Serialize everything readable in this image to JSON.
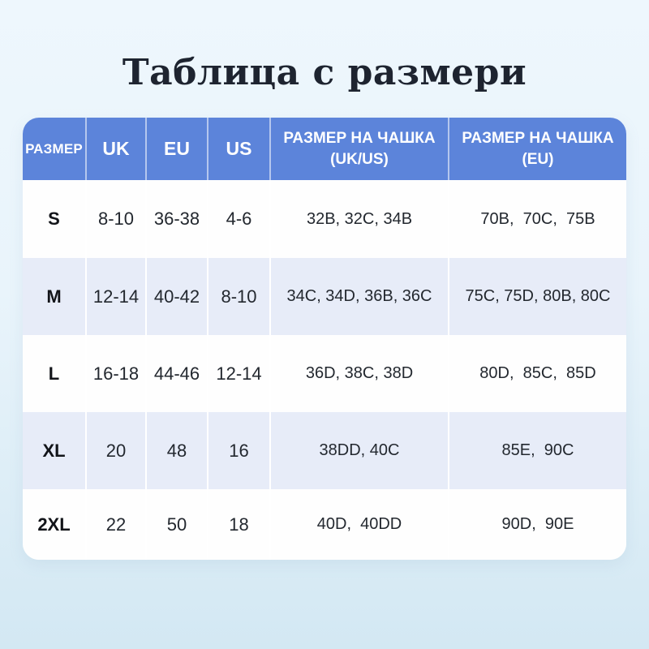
{
  "page": {
    "title": "Таблица с размери"
  },
  "colors": {
    "header_bg": "#5c84da",
    "header_text": "#ffffff",
    "band_row_bg": "#e7ecf8",
    "white_row_bg": "#fefefe",
    "card_bg": "#ffffff",
    "page_bg_top": "#eef7fd",
    "page_bg_bottom": "#d3e8f3",
    "title_text": "#1e2430",
    "body_text": "#23282f"
  },
  "chart_data": {
    "type": "table",
    "title": "Таблица с размери",
    "columns": [
      "РАЗМЕР",
      "UK",
      "EU",
      "US",
      "РАЗМЕР НА ЧАШКА (UK/US)",
      "РАЗМЕР НА ЧАШКА (EU)"
    ],
    "rows": [
      [
        "S",
        "8-10",
        "36-38",
        "4-6",
        "32B, 32C, 34B",
        "70B, 70C, 75B"
      ],
      [
        "M",
        "12-14",
        "40-42",
        "8-10",
        "34C, 34D, 36B, 36C",
        "75C, 75D, 80B, 80C"
      ],
      [
        "L",
        "16-18",
        "44-46",
        "12-14",
        "36D, 38C, 38D",
        "80D, 85C, 85D"
      ],
      [
        "XL",
        "20",
        "48",
        "16",
        "38DD, 40C",
        "85E, 90C"
      ],
      [
        "2XL",
        "22",
        "50",
        "18",
        "40D, 40DD",
        "90D, 90E"
      ]
    ],
    "layout": {
      "header_style": "blue band, white bold text",
      "row_striping": "white / light lavender alternating",
      "grid": "thin white column separators"
    }
  },
  "table": {
    "headers": {
      "size": "РАЗМЕР",
      "uk": "UK",
      "eu": "EU",
      "us": "US",
      "cup_ukus": "РАЗМЕР НА ЧАШКА\n(UK/US)",
      "cup_eu": "РАЗМЕР НА ЧАШКА\n(EU)"
    },
    "rows": [
      {
        "size": "S",
        "uk": "8-10",
        "eu": "36-38",
        "us": "4-6",
        "cup_ukus": "32B, 32C, 34B",
        "cup_eu": "70B,  70C,  75B"
      },
      {
        "size": "M",
        "uk": "12-14",
        "eu": "40-42",
        "us": "8-10",
        "cup_ukus": "34C, 34D, 36B, 36C",
        "cup_eu": "75C, 75D, 80B, 80C"
      },
      {
        "size": "L",
        "uk": "16-18",
        "eu": "44-46",
        "us": "12-14",
        "cup_ukus": "36D, 38C, 38D",
        "cup_eu": "80D,  85C,  85D"
      },
      {
        "size": "XL",
        "uk": "20",
        "eu": "48",
        "us": "16",
        "cup_ukus": "38DD, 40C",
        "cup_eu": "85E,  90C"
      },
      {
        "size": "2XL",
        "uk": "22",
        "eu": "50",
        "us": "18",
        "cup_ukus": "40D,  40DD",
        "cup_eu": "90D,  90E"
      }
    ]
  }
}
